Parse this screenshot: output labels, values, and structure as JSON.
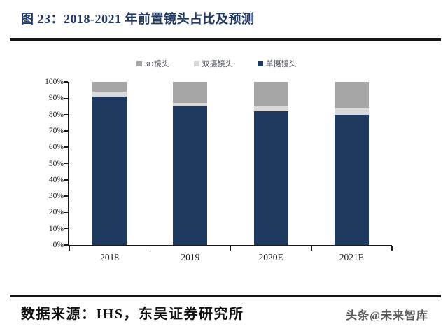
{
  "page": {
    "title": "图 23：2018-2021 年前置镜头占比及预测",
    "source_label": "数据来源：IHS，东吴证券研究所",
    "watermark": "头条@未来智库"
  },
  "colors": {
    "title_blue": "#1f3864",
    "rule_black": "#151515",
    "single_cam_navy": "#1e3a5e",
    "dual_cam_light_gray": "#d9d9d9",
    "cam_3d_gray": "#a6a6a6"
  },
  "chart_data": {
    "type": "bar",
    "stacked": true,
    "title": "2018-2021 年前置镜头占比及预测",
    "xlabel": "",
    "ylabel": "",
    "categories": [
      "2018",
      "2019",
      "2020E",
      "2021E"
    ],
    "series": [
      {
        "name": "单摄镜头",
        "color": "#1e3a5e",
        "values": [
          91,
          85,
          82,
          80
        ]
      },
      {
        "name": "双摄镜头",
        "color": "#d9d9d9",
        "values": [
          3,
          2,
          3,
          4
        ]
      },
      {
        "name": "3D镜头",
        "color": "#a6a6a6",
        "values": [
          6,
          13,
          15,
          16
        ]
      }
    ],
    "legend": [
      {
        "label": "3D镜头",
        "color": "#a6a6a6"
      },
      {
        "label": "双摄镜头",
        "color": "#d9d9d9"
      },
      {
        "label": "单摄镜头",
        "color": "#1e3a5e"
      }
    ],
    "legend_position": "top",
    "grid": false,
    "ylim": [
      0,
      100
    ],
    "ytick_step": 10,
    "ytick_suffix": "%"
  }
}
